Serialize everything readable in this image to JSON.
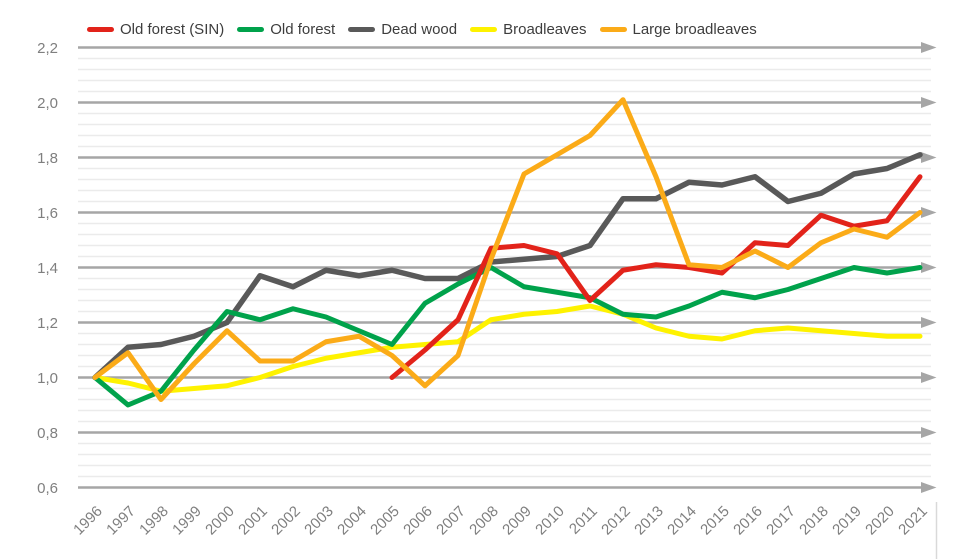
{
  "chart_data": {
    "type": "line",
    "title": "",
    "legend_position": "top",
    "x_labels": [
      "1996",
      "1997",
      "1998",
      "1999",
      "2000",
      "2001",
      "2002",
      "2003",
      "2004",
      "2005",
      "2006",
      "2007",
      "2008",
      "2009",
      "2010",
      "2011",
      "2012",
      "2013",
      "2014",
      "2015",
      "2016",
      "2017",
      "2018",
      "2019",
      "2020",
      "2021"
    ],
    "ylim": [
      0.6,
      2.2
    ],
    "y_tick_values": [
      0.6,
      0.8,
      1.0,
      1.2,
      1.4,
      1.6,
      1.8,
      2.0,
      2.2
    ],
    "y_tick_labels": [
      "0,6",
      "0,8",
      "1,0",
      "1,2",
      "1,4",
      "1,6",
      "1,8",
      "2,0",
      "2,2"
    ],
    "grid": {
      "major_color": "#a6a6a6",
      "minor_color": "#ebebeb",
      "minor_lines_per_interval": 4,
      "arrows_on_major_gridlines": true,
      "axis_label_color": "#7f7f7f",
      "legend_text_color": "#3d3d3d",
      "border_color": "#d9d9d9"
    },
    "series": [
      {
        "name": "Old forest (SIN)",
        "color": "#e2231a",
        "values": [
          null,
          null,
          null,
          null,
          null,
          null,
          null,
          null,
          null,
          1.0,
          1.1,
          1.21,
          1.47,
          1.48,
          1.45,
          1.28,
          1.39,
          1.41,
          1.4,
          1.38,
          1.49,
          1.48,
          1.59,
          1.55,
          1.57,
          1.73
        ]
      },
      {
        "name": "Old forest",
        "color": "#00a24b",
        "values": [
          1.0,
          0.9,
          0.95,
          1.1,
          1.24,
          1.21,
          1.25,
          1.22,
          1.17,
          1.12,
          1.27,
          1.34,
          1.4,
          1.33,
          1.31,
          1.29,
          1.23,
          1.22,
          1.26,
          1.31,
          1.29,
          1.32,
          1.36,
          1.4,
          1.38,
          1.4
        ]
      },
      {
        "name": "Dead wood",
        "color": "#595959",
        "values": [
          1.0,
          1.11,
          1.12,
          1.15,
          1.2,
          1.37,
          1.33,
          1.39,
          1.37,
          1.39,
          1.36,
          1.36,
          1.42,
          1.43,
          1.44,
          1.48,
          1.65,
          1.65,
          1.71,
          1.7,
          1.73,
          1.64,
          1.67,
          1.74,
          1.76,
          1.81
        ]
      },
      {
        "name": "Broadleaves",
        "color": "#fef200",
        "values": [
          1.0,
          0.98,
          0.95,
          0.96,
          0.97,
          1.0,
          1.04,
          1.07,
          1.09,
          1.11,
          1.12,
          1.13,
          1.21,
          1.23,
          1.24,
          1.26,
          1.23,
          1.18,
          1.15,
          1.14,
          1.17,
          1.18,
          1.17,
          1.16,
          1.15,
          1.15
        ]
      },
      {
        "name": "Large broadleaves",
        "color": "#fbab18",
        "values": [
          1.0,
          1.09,
          0.92,
          1.05,
          1.17,
          1.06,
          1.06,
          1.13,
          1.15,
          1.08,
          0.97,
          1.08,
          1.43,
          1.74,
          1.81,
          1.88,
          2.01,
          1.73,
          1.41,
          1.4,
          1.46,
          1.4,
          1.49,
          1.54,
          1.51,
          1.6
        ]
      }
    ]
  }
}
